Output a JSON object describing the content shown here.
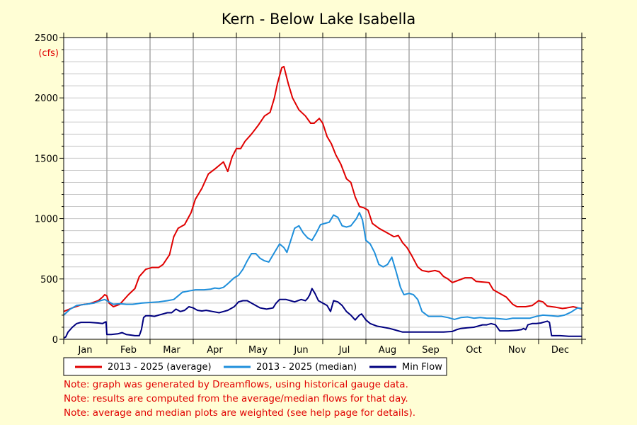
{
  "chart_data": {
    "type": "line",
    "title": "Kern - Below Lake Isabella",
    "unit_label": "(cfs)",
    "xlabel": "",
    "ylabel": "",
    "ylim": [
      0,
      2500
    ],
    "yticks": [
      0,
      500,
      1000,
      1500,
      2000,
      2500
    ],
    "xlim": [
      0,
      12
    ],
    "month_labels": [
      "Jan",
      "Feb",
      "Mar",
      "Apr",
      "May",
      "Jun",
      "Jul",
      "Aug",
      "Sep",
      "Oct",
      "Nov",
      "Dec"
    ],
    "x_unit": "month (0 = Jan 1, 12 = Dec 31)",
    "grid": true,
    "legend_position": "bottom",
    "series": [
      {
        "name": "2013 - 2025 (average)",
        "color": "#e00000",
        "points": [
          [
            0.0,
            230
          ],
          [
            0.2,
            260
          ],
          [
            0.4,
            285
          ],
          [
            0.6,
            295
          ],
          [
            0.8,
            320
          ],
          [
            0.9,
            350
          ],
          [
            0.95,
            370
          ],
          [
            1.0,
            360
          ],
          [
            1.05,
            300
          ],
          [
            1.15,
            270
          ],
          [
            1.3,
            290
          ],
          [
            1.5,
            370
          ],
          [
            1.65,
            420
          ],
          [
            1.75,
            520
          ],
          [
            1.9,
            580
          ],
          [
            2.05,
            595
          ],
          [
            2.2,
            595
          ],
          [
            2.3,
            620
          ],
          [
            2.45,
            700
          ],
          [
            2.55,
            850
          ],
          [
            2.65,
            920
          ],
          [
            2.8,
            950
          ],
          [
            2.95,
            1050
          ],
          [
            3.05,
            1160
          ],
          [
            3.2,
            1250
          ],
          [
            3.35,
            1370
          ],
          [
            3.5,
            1410
          ],
          [
            3.6,
            1440
          ],
          [
            3.7,
            1470
          ],
          [
            3.8,
            1390
          ],
          [
            3.9,
            1510
          ],
          [
            4.0,
            1580
          ],
          [
            4.1,
            1580
          ],
          [
            4.2,
            1640
          ],
          [
            4.35,
            1700
          ],
          [
            4.5,
            1770
          ],
          [
            4.65,
            1850
          ],
          [
            4.78,
            1880
          ],
          [
            4.88,
            2000
          ],
          [
            4.95,
            2120
          ],
          [
            5.05,
            2250
          ],
          [
            5.1,
            2260
          ],
          [
            5.2,
            2120
          ],
          [
            5.3,
            2000
          ],
          [
            5.45,
            1900
          ],
          [
            5.6,
            1850
          ],
          [
            5.72,
            1790
          ],
          [
            5.8,
            1790
          ],
          [
            5.92,
            1830
          ],
          [
            6.0,
            1790
          ],
          [
            6.1,
            1680
          ],
          [
            6.2,
            1620
          ],
          [
            6.3,
            1530
          ],
          [
            6.42,
            1450
          ],
          [
            6.55,
            1330
          ],
          [
            6.65,
            1300
          ],
          [
            6.75,
            1180
          ],
          [
            6.85,
            1100
          ],
          [
            6.95,
            1090
          ],
          [
            7.05,
            1070
          ],
          [
            7.15,
            960
          ],
          [
            7.3,
            920
          ],
          [
            7.5,
            880
          ],
          [
            7.65,
            850
          ],
          [
            7.75,
            860
          ],
          [
            7.85,
            800
          ],
          [
            7.95,
            760
          ],
          [
            8.05,
            700
          ],
          [
            8.2,
            600
          ],
          [
            8.3,
            570
          ],
          [
            8.45,
            560
          ],
          [
            8.6,
            570
          ],
          [
            8.7,
            560
          ],
          [
            8.8,
            520
          ],
          [
            8.9,
            500
          ],
          [
            9.0,
            470
          ],
          [
            9.15,
            490
          ],
          [
            9.3,
            510
          ],
          [
            9.45,
            510
          ],
          [
            9.55,
            480
          ],
          [
            9.7,
            475
          ],
          [
            9.85,
            470
          ],
          [
            9.95,
            410
          ],
          [
            10.1,
            380
          ],
          [
            10.25,
            350
          ],
          [
            10.4,
            290
          ],
          [
            10.5,
            270
          ],
          [
            10.7,
            270
          ],
          [
            10.85,
            280
          ],
          [
            11.0,
            320
          ],
          [
            11.1,
            310
          ],
          [
            11.2,
            275
          ],
          [
            11.4,
            265
          ],
          [
            11.55,
            255
          ],
          [
            11.65,
            260
          ],
          [
            11.8,
            270
          ],
          [
            11.9,
            262
          ],
          [
            12.0,
            250
          ]
        ]
      },
      {
        "name": "2013 - 2025 (median)",
        "color": "#1f8fdb",
        "points": [
          [
            0.0,
            200
          ],
          [
            0.15,
            250
          ],
          [
            0.3,
            280
          ],
          [
            0.5,
            290
          ],
          [
            0.7,
            300
          ],
          [
            0.85,
            320
          ],
          [
            0.95,
            330
          ],
          [
            1.05,
            310
          ],
          [
            1.15,
            290
          ],
          [
            1.3,
            295
          ],
          [
            1.45,
            290
          ],
          [
            1.6,
            290
          ],
          [
            1.8,
            300
          ],
          [
            2.0,
            305
          ],
          [
            2.2,
            310
          ],
          [
            2.4,
            320
          ],
          [
            2.55,
            330
          ],
          [
            2.65,
            360
          ],
          [
            2.75,
            390
          ],
          [
            2.9,
            400
          ],
          [
            3.05,
            410
          ],
          [
            3.25,
            410
          ],
          [
            3.4,
            415
          ],
          [
            3.5,
            425
          ],
          [
            3.6,
            420
          ],
          [
            3.7,
            430
          ],
          [
            3.8,
            460
          ],
          [
            3.95,
            510
          ],
          [
            4.05,
            530
          ],
          [
            4.15,
            580
          ],
          [
            4.25,
            650
          ],
          [
            4.35,
            710
          ],
          [
            4.45,
            710
          ],
          [
            4.55,
            670
          ],
          [
            4.65,
            650
          ],
          [
            4.75,
            640
          ],
          [
            4.85,
            700
          ],
          [
            5.0,
            790
          ],
          [
            5.1,
            760
          ],
          [
            5.17,
            720
          ],
          [
            5.25,
            810
          ],
          [
            5.35,
            920
          ],
          [
            5.45,
            940
          ],
          [
            5.55,
            880
          ],
          [
            5.65,
            840
          ],
          [
            5.75,
            820
          ],
          [
            5.85,
            880
          ],
          [
            5.95,
            950
          ],
          [
            6.05,
            960
          ],
          [
            6.15,
            970
          ],
          [
            6.25,
            1030
          ],
          [
            6.35,
            1010
          ],
          [
            6.45,
            940
          ],
          [
            6.55,
            930
          ],
          [
            6.65,
            940
          ],
          [
            6.78,
            1000
          ],
          [
            6.85,
            1050
          ],
          [
            6.92,
            990
          ],
          [
            7.0,
            820
          ],
          [
            7.1,
            790
          ],
          [
            7.2,
            720
          ],
          [
            7.3,
            620
          ],
          [
            7.4,
            600
          ],
          [
            7.5,
            620
          ],
          [
            7.6,
            680
          ],
          [
            7.7,
            560
          ],
          [
            7.8,
            430
          ],
          [
            7.88,
            370
          ],
          [
            8.0,
            380
          ],
          [
            8.1,
            370
          ],
          [
            8.2,
            330
          ],
          [
            8.3,
            230
          ],
          [
            8.45,
            190
          ],
          [
            8.6,
            190
          ],
          [
            8.75,
            190
          ],
          [
            8.9,
            180
          ],
          [
            9.05,
            165
          ],
          [
            9.2,
            180
          ],
          [
            9.35,
            185
          ],
          [
            9.5,
            175
          ],
          [
            9.65,
            180
          ],
          [
            9.8,
            175
          ],
          [
            9.95,
            175
          ],
          [
            10.1,
            170
          ],
          [
            10.25,
            165
          ],
          [
            10.4,
            175
          ],
          [
            10.6,
            175
          ],
          [
            10.8,
            175
          ],
          [
            10.95,
            190
          ],
          [
            11.1,
            200
          ],
          [
            11.3,
            195
          ],
          [
            11.45,
            190
          ],
          [
            11.6,
            200
          ],
          [
            11.75,
            225
          ],
          [
            11.9,
            260
          ],
          [
            12.0,
            255
          ]
        ]
      },
      {
        "name": "Min Flow",
        "color": "#00007f",
        "points": [
          [
            0.0,
            10
          ],
          [
            0.05,
            20
          ],
          [
            0.1,
            60
          ],
          [
            0.2,
            100
          ],
          [
            0.3,
            130
          ],
          [
            0.4,
            140
          ],
          [
            0.6,
            140
          ],
          [
            0.8,
            135
          ],
          [
            0.9,
            130
          ],
          [
            0.95,
            140
          ],
          [
            0.98,
            145
          ],
          [
            1.0,
            40
          ],
          [
            1.1,
            40
          ],
          [
            1.25,
            45
          ],
          [
            1.35,
            55
          ],
          [
            1.45,
            40
          ],
          [
            1.55,
            35
          ],
          [
            1.65,
            30
          ],
          [
            1.75,
            30
          ],
          [
            1.8,
            80
          ],
          [
            1.85,
            180
          ],
          [
            1.9,
            195
          ],
          [
            2.0,
            195
          ],
          [
            2.1,
            190
          ],
          [
            2.2,
            200
          ],
          [
            2.3,
            210
          ],
          [
            2.4,
            220
          ],
          [
            2.5,
            220
          ],
          [
            2.6,
            250
          ],
          [
            2.7,
            230
          ],
          [
            2.8,
            240
          ],
          [
            2.9,
            270
          ],
          [
            3.0,
            260
          ],
          [
            3.1,
            240
          ],
          [
            3.2,
            235
          ],
          [
            3.3,
            240
          ],
          [
            3.45,
            230
          ],
          [
            3.6,
            220
          ],
          [
            3.7,
            230
          ],
          [
            3.8,
            240
          ],
          [
            3.95,
            270
          ],
          [
            4.05,
            310
          ],
          [
            4.15,
            320
          ],
          [
            4.25,
            320
          ],
          [
            4.4,
            290
          ],
          [
            4.55,
            260
          ],
          [
            4.7,
            250
          ],
          [
            4.85,
            260
          ],
          [
            4.92,
            300
          ],
          [
            5.0,
            330
          ],
          [
            5.15,
            330
          ],
          [
            5.25,
            320
          ],
          [
            5.35,
            310
          ],
          [
            5.5,
            330
          ],
          [
            5.6,
            320
          ],
          [
            5.65,
            340
          ],
          [
            5.7,
            370
          ],
          [
            5.75,
            420
          ],
          [
            5.82,
            380
          ],
          [
            5.9,
            320
          ],
          [
            6.0,
            300
          ],
          [
            6.1,
            280
          ],
          [
            6.18,
            230
          ],
          [
            6.25,
            320
          ],
          [
            6.35,
            310
          ],
          [
            6.45,
            280
          ],
          [
            6.55,
            230
          ],
          [
            6.65,
            200
          ],
          [
            6.75,
            160
          ],
          [
            6.85,
            200
          ],
          [
            6.9,
            210
          ],
          [
            7.0,
            160
          ],
          [
            7.1,
            130
          ],
          [
            7.25,
            110
          ],
          [
            7.4,
            100
          ],
          [
            7.55,
            90
          ],
          [
            7.65,
            80
          ],
          [
            7.75,
            70
          ],
          [
            7.85,
            60
          ],
          [
            8.0,
            60
          ],
          [
            8.5,
            60
          ],
          [
            8.8,
            60
          ],
          [
            9.0,
            65
          ],
          [
            9.1,
            80
          ],
          [
            9.2,
            90
          ],
          [
            9.35,
            95
          ],
          [
            9.5,
            100
          ],
          [
            9.6,
            110
          ],
          [
            9.7,
            120
          ],
          [
            9.8,
            120
          ],
          [
            9.9,
            130
          ],
          [
            10.0,
            120
          ],
          [
            10.1,
            70
          ],
          [
            10.3,
            70
          ],
          [
            10.5,
            75
          ],
          [
            10.6,
            80
          ],
          [
            10.65,
            90
          ],
          [
            10.7,
            80
          ],
          [
            10.75,
            120
          ],
          [
            10.85,
            130
          ],
          [
            10.95,
            130
          ],
          [
            11.05,
            135
          ],
          [
            11.15,
            145
          ],
          [
            11.2,
            150
          ],
          [
            11.25,
            140
          ],
          [
            11.3,
            30
          ],
          [
            11.5,
            30
          ],
          [
            11.7,
            25
          ],
          [
            11.85,
            25
          ],
          [
            12.0,
            25
          ]
        ]
      }
    ],
    "notes": [
      "Note: graph was generated by Dreamflows, using historical gauge data.",
      "Note: results are computed from the average/median flows for that day.",
      "Note: average and median plots are weighted (see help page for details)."
    ]
  }
}
